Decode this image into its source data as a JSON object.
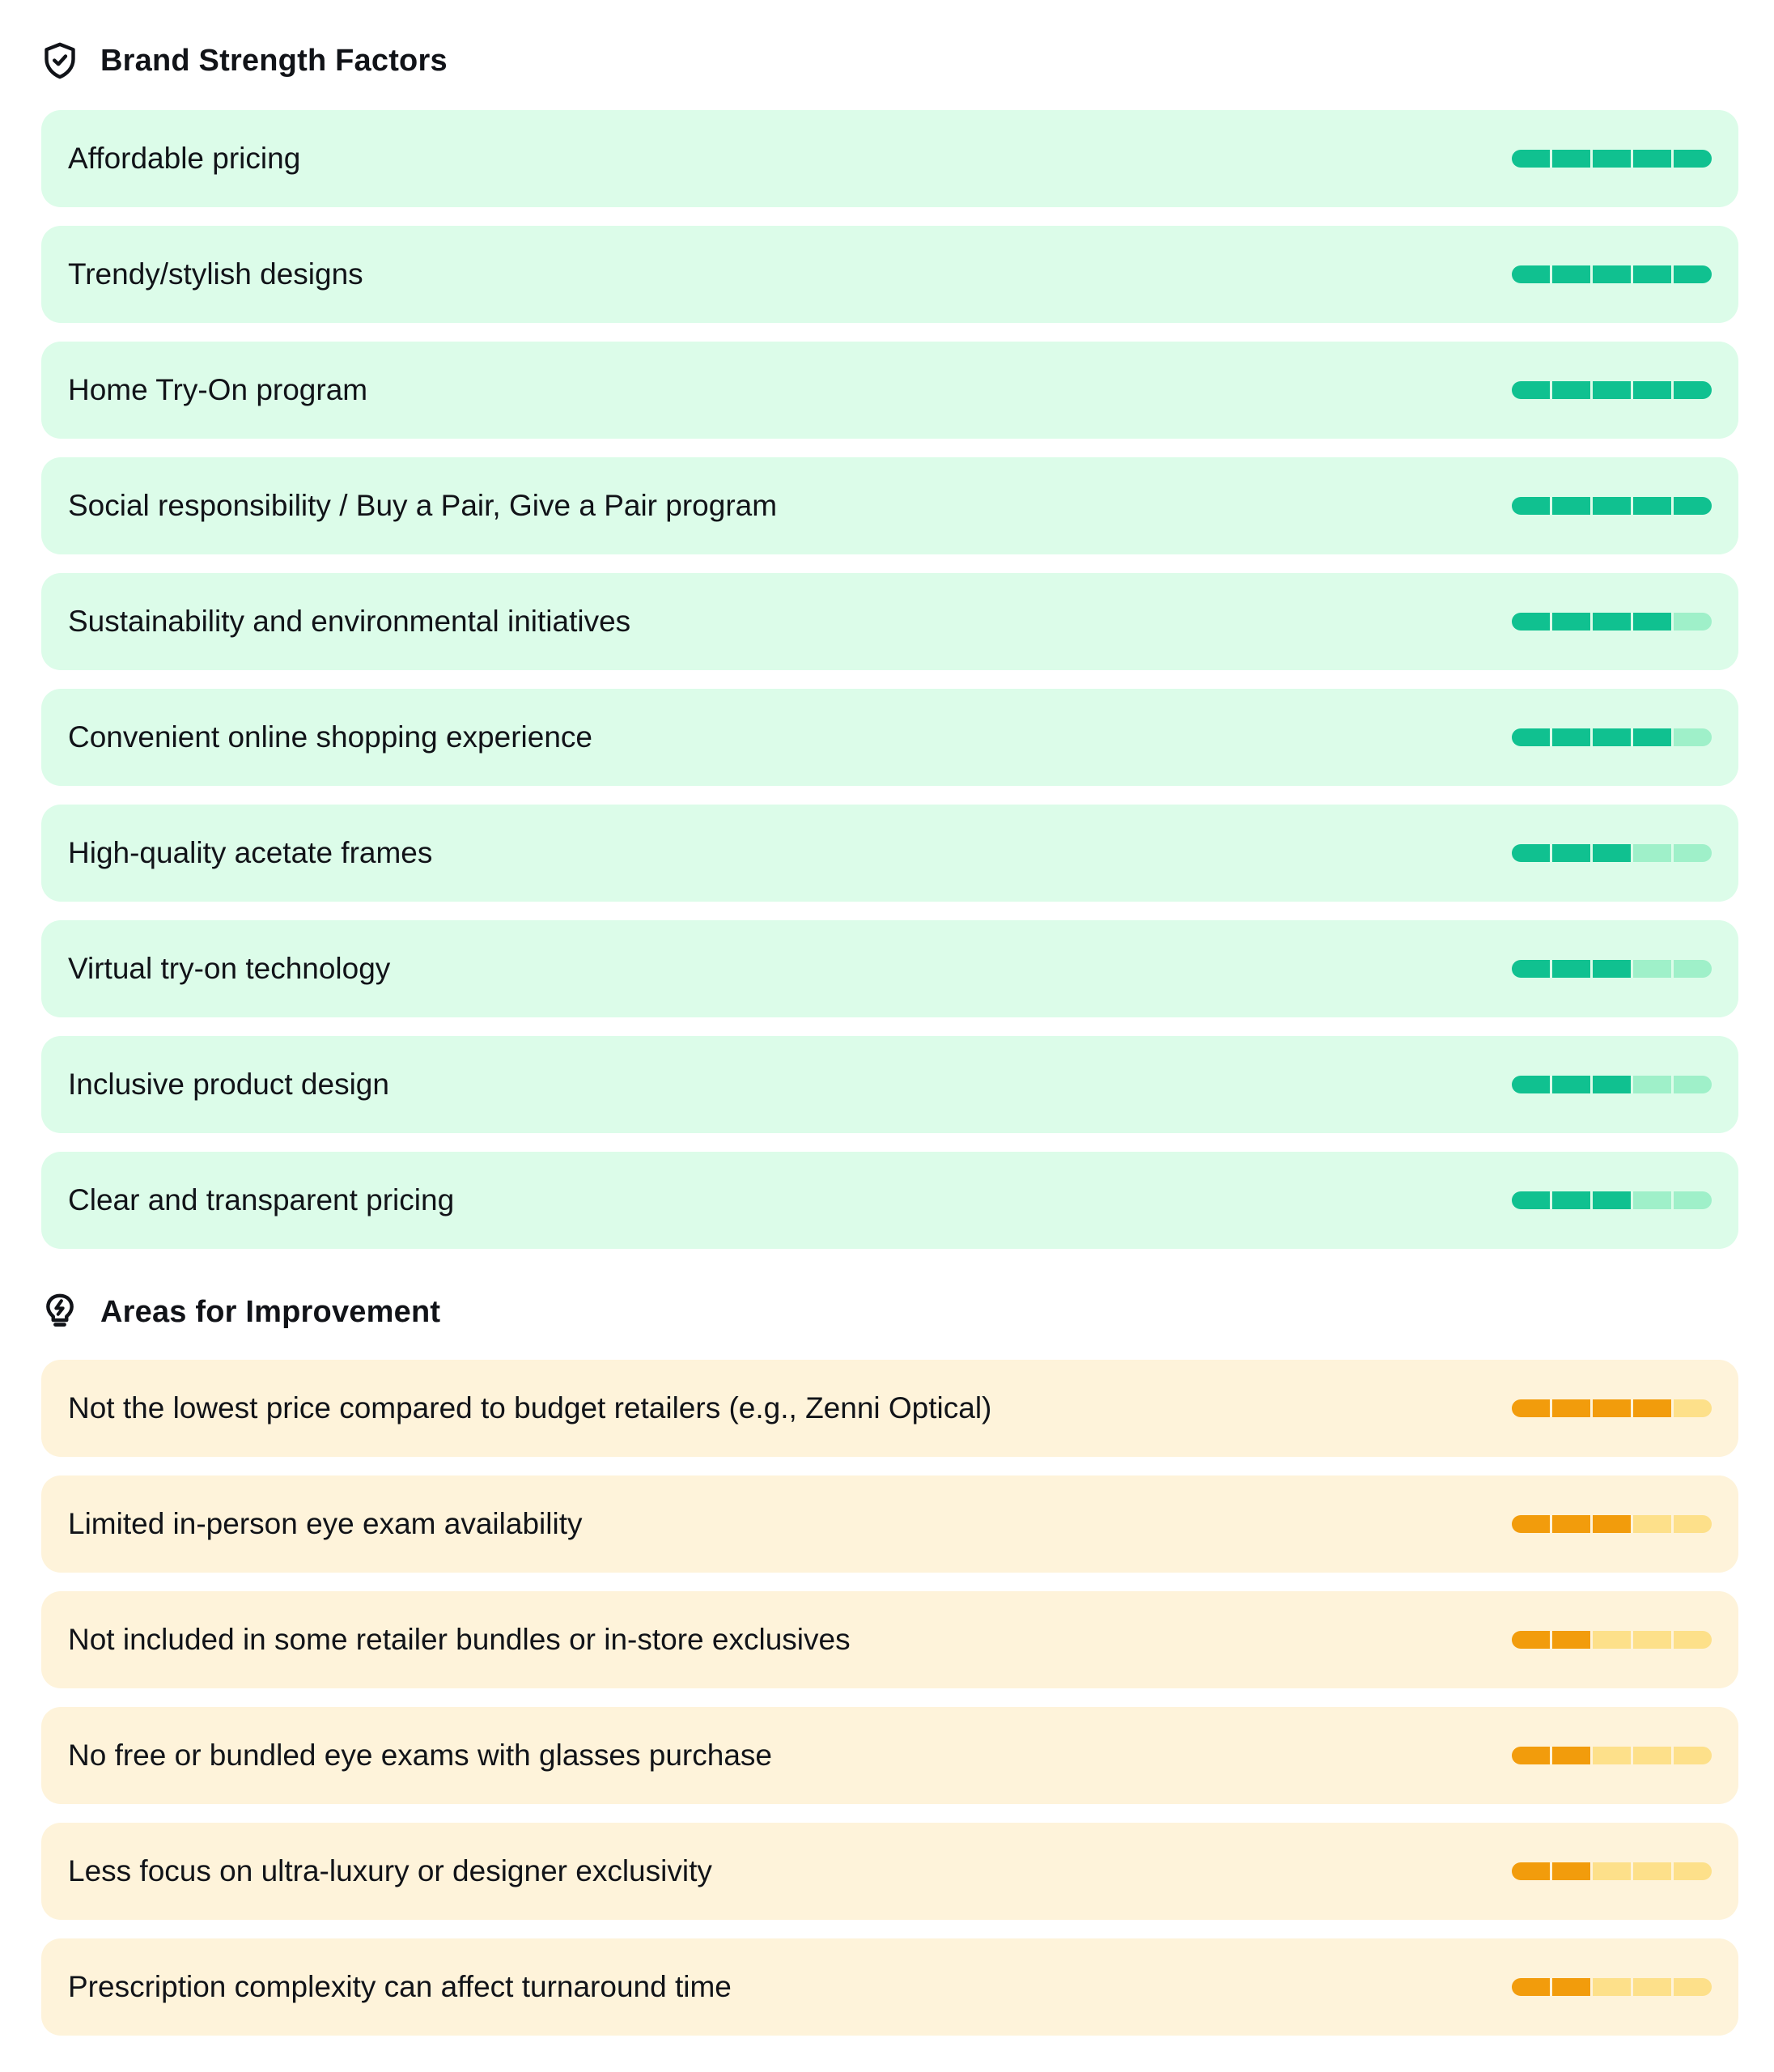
{
  "strengths": {
    "title": "Brand Strength Factors",
    "icon": "shield-check-icon",
    "colors": {
      "card_bg": "#dcfce9",
      "filled": "#10c190",
      "empty": "#9ff0c9"
    },
    "max_rating": 5,
    "items": [
      {
        "label": "Affordable pricing",
        "rating": 5
      },
      {
        "label": "Trendy/stylish designs",
        "rating": 5
      },
      {
        "label": "Home Try-On program",
        "rating": 5
      },
      {
        "label": "Social responsibility / Buy a Pair, Give a Pair program",
        "rating": 5
      },
      {
        "label": "Sustainability and environmental initiatives",
        "rating": 4
      },
      {
        "label": "Convenient online shopping experience",
        "rating": 4
      },
      {
        "label": "High-quality acetate frames",
        "rating": 3
      },
      {
        "label": "Virtual try-on technology",
        "rating": 3
      },
      {
        "label": "Inclusive product design",
        "rating": 3
      },
      {
        "label": "Clear and transparent pricing",
        "rating": 3
      }
    ]
  },
  "improvements": {
    "title": "Areas for Improvement",
    "icon": "lightbulb-bolt-icon",
    "colors": {
      "card_bg": "#fef3da",
      "filled": "#f29c0c",
      "empty": "#fde08a"
    },
    "max_rating": 5,
    "items": [
      {
        "label": "Not the lowest price compared to budget retailers (e.g., Zenni Optical)",
        "rating": 4
      },
      {
        "label": "Limited in-person eye exam availability",
        "rating": 3
      },
      {
        "label": "Not included in some retailer bundles or in-store exclusives",
        "rating": 2
      },
      {
        "label": "No free or bundled eye exams with glasses purchase",
        "rating": 2
      },
      {
        "label": "Less focus on ultra-luxury or designer exclusivity",
        "rating": 2
      },
      {
        "label": "Prescription complexity can affect turnaround time",
        "rating": 2
      }
    ]
  }
}
